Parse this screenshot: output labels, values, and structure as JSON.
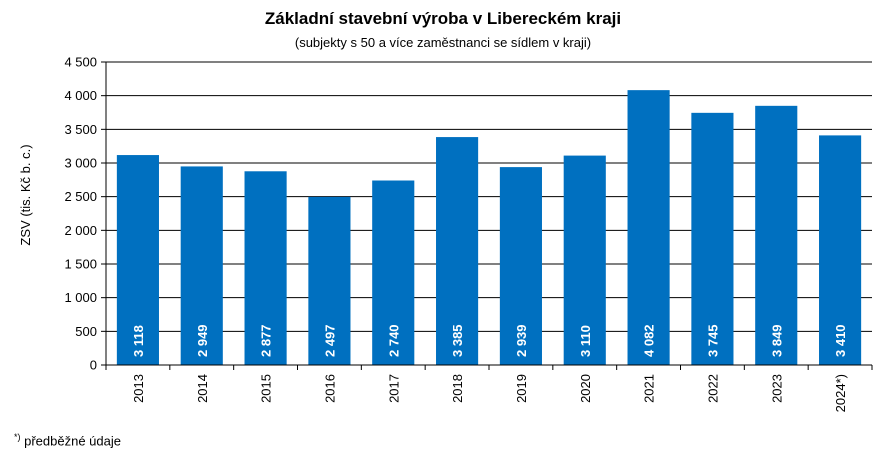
{
  "chart_data": {
    "type": "bar",
    "title": "Základní stavební výroba v Libereckém kraji",
    "subtitle": "(subjekty s 50 a více zaměstnanci se sídlem v kraji)",
    "xlabel": "",
    "ylabel": "ZSV (tis. Kč b. c.)",
    "categories": [
      "2013",
      "2014",
      "2015",
      "2016",
      "2017",
      "2018",
      "2019",
      "2020",
      "2021",
      "2022",
      "2023",
      "2024*)"
    ],
    "values": [
      3118,
      2949,
      2877,
      2497,
      2740,
      3385,
      2939,
      3110,
      4082,
      3745,
      3849,
      3410
    ],
    "data_labels": [
      "3 118",
      "2 949",
      "2 877",
      "2 497",
      "2 740",
      "3 385",
      "2 939",
      "3 110",
      "4 082",
      "3 745",
      "3 849",
      "3 410"
    ],
    "ylim": [
      0,
      4500
    ],
    "y_ticks": [
      0,
      500,
      1000,
      1500,
      2000,
      2500,
      3000,
      3500,
      4000,
      4500
    ],
    "y_tick_labels": [
      "0",
      "500",
      "1 000",
      "1 500",
      "2 000",
      "2 500",
      "3 000",
      "3 500",
      "4 000",
      "4 500"
    ],
    "grid": true,
    "legend": "none",
    "bar_color": "#0070C0",
    "gridline_color": "#000000"
  },
  "footnote": {
    "marker": "*)",
    "text": " předběžné údaje"
  }
}
